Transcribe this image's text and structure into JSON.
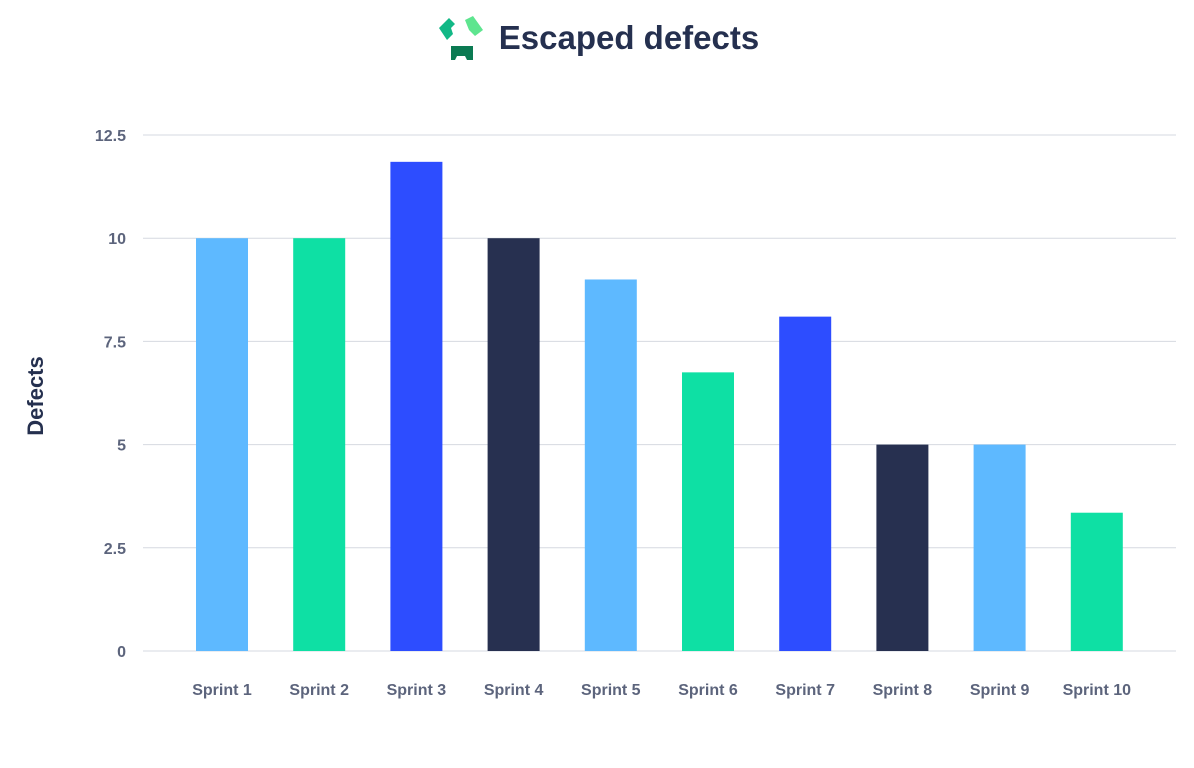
{
  "chart_data": {
    "type": "bar",
    "title": "Escaped defects",
    "xlabel": "",
    "ylabel": "Defects",
    "categories": [
      "Sprint 1",
      "Sprint 2",
      "Sprint 3",
      "Sprint 4",
      "Sprint 5",
      "Sprint 6",
      "Sprint 7",
      "Sprint 8",
      "Sprint 9",
      "Sprint 10"
    ],
    "values": [
      10,
      10,
      11.85,
      10,
      9,
      6.75,
      8.1,
      5,
      5,
      3.35
    ],
    "bar_colors": [
      "#5eb9ff",
      "#0ee0a4",
      "#2d4dff",
      "#273050",
      "#5eb9ff",
      "#0ee0a4",
      "#2d4dff",
      "#273050",
      "#5eb9ff",
      "#0ee0a4"
    ],
    "ylim": [
      0,
      12.5
    ],
    "yticks": [
      0,
      2.5,
      5,
      7.5,
      10,
      12.5
    ],
    "ytick_labels": [
      "0",
      "2.5",
      "5",
      "7.5",
      "10",
      "12.5"
    ],
    "grid": true,
    "legend": "none"
  },
  "logo": {
    "icon": "logo-icon",
    "colors": [
      "#12b886",
      "#5ee58f",
      "#0b7a52"
    ]
  }
}
